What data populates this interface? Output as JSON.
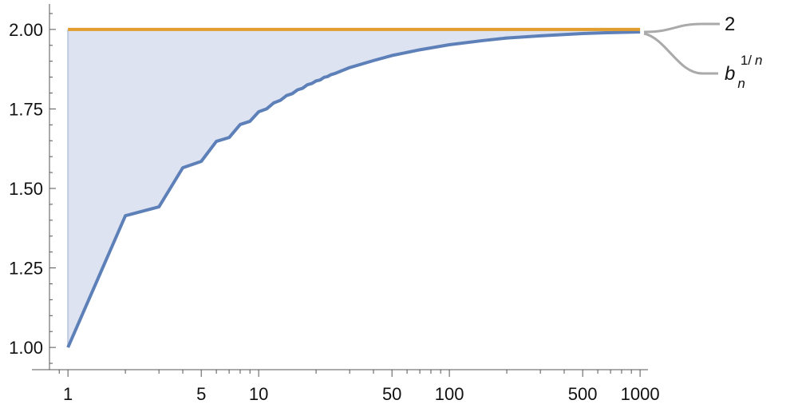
{
  "chart_data": {
    "type": "line",
    "x_scale": "log",
    "xlim": [
      0.8,
      1100
    ],
    "ylim": [
      0.93,
      2.08
    ],
    "x_ticks": [
      {
        "value": 1,
        "label": "1"
      },
      {
        "value": 5,
        "label": "5"
      },
      {
        "value": 10,
        "label": "10"
      },
      {
        "value": 50,
        "label": "50"
      },
      {
        "value": 100,
        "label": "100"
      },
      {
        "value": 500,
        "label": "500"
      },
      {
        "value": 1000,
        "label": "1000"
      }
    ],
    "y_ticks": [
      {
        "value": 1.0,
        "label": "1.00"
      },
      {
        "value": 1.25,
        "label": "1.25"
      },
      {
        "value": 1.5,
        "label": "1.50"
      },
      {
        "value": 1.75,
        "label": "1.75"
      },
      {
        "value": 2.0,
        "label": "2.00"
      }
    ],
    "grid": false,
    "legend_placement": "right",
    "fill_between_series": true,
    "series": [
      {
        "name": "2",
        "color": "#E19D2E",
        "x": [
          1,
          1000
        ],
        "y": [
          2.0,
          2.0
        ]
      },
      {
        "name_main": "b",
        "name_sub": "n",
        "name_sup_1": "1/",
        "name_sup_2": "n",
        "color": "#5E80B8",
        "x": [
          1,
          2,
          3,
          4,
          5,
          6,
          7,
          8,
          9,
          10,
          11,
          12,
          13,
          14,
          15,
          16,
          17,
          18,
          19,
          20,
          21,
          22,
          23,
          24,
          25,
          30,
          40,
          50,
          70,
          100,
          150,
          200,
          300,
          500,
          700,
          1000
        ],
        "y": [
          1.0,
          1.414,
          1.442,
          1.565,
          1.585,
          1.648,
          1.66,
          1.701,
          1.711,
          1.741,
          1.75,
          1.769,
          1.777,
          1.792,
          1.798,
          1.81,
          1.815,
          1.826,
          1.83,
          1.838,
          1.841,
          1.849,
          1.852,
          1.858,
          1.861,
          1.88,
          1.902,
          1.918,
          1.936,
          1.952,
          1.965,
          1.973,
          1.98,
          1.987,
          1.99,
          1.992
        ]
      }
    ],
    "fill_color": "#DDE3F0"
  }
}
